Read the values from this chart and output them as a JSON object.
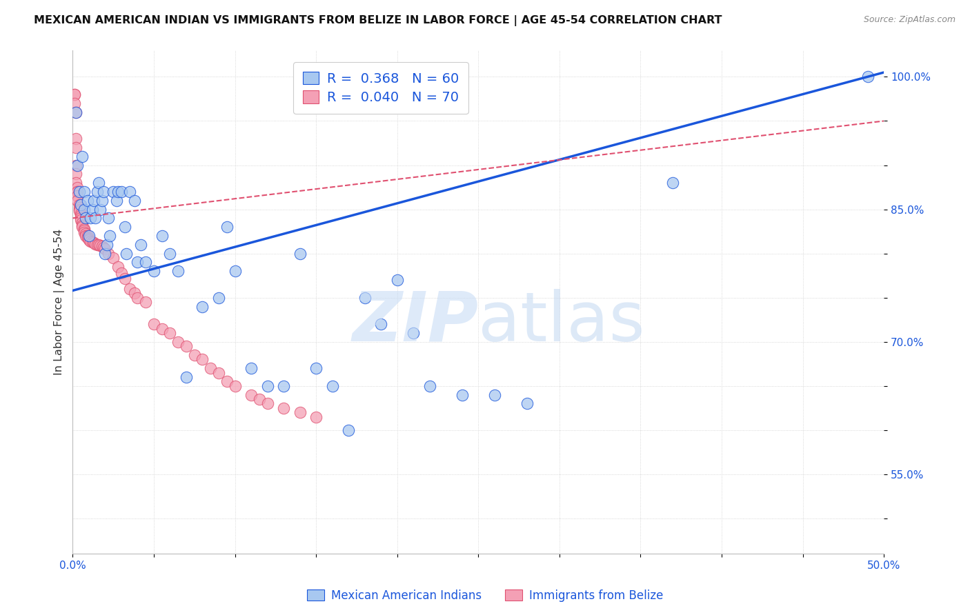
{
  "title": "MEXICAN AMERICAN INDIAN VS IMMIGRANTS FROM BELIZE IN LABOR FORCE | AGE 45-54 CORRELATION CHART",
  "source": "Source: ZipAtlas.com",
  "ylabel": "In Labor Force | Age 45-54",
  "xlim": [
    0.0,
    0.5
  ],
  "ylim": [
    0.46,
    1.03
  ],
  "blue_color": "#A8C8F0",
  "pink_color": "#F4A0B5",
  "line_blue": "#1A56DB",
  "line_pink": "#E05070",
  "blue_line_x0": 0.0,
  "blue_line_y0": 0.758,
  "blue_line_x1": 0.5,
  "blue_line_y1": 1.005,
  "pink_line_x0": 0.0,
  "pink_line_y0": 0.84,
  "pink_line_x1": 0.5,
  "pink_line_y1": 0.95,
  "blue_scatter_x": [
    0.002,
    0.003,
    0.004,
    0.005,
    0.006,
    0.007,
    0.007,
    0.008,
    0.009,
    0.01,
    0.011,
    0.012,
    0.013,
    0.014,
    0.015,
    0.016,
    0.017,
    0.018,
    0.019,
    0.02,
    0.021,
    0.022,
    0.023,
    0.025,
    0.027,
    0.028,
    0.03,
    0.032,
    0.033,
    0.035,
    0.038,
    0.04,
    0.042,
    0.045,
    0.05,
    0.055,
    0.06,
    0.065,
    0.07,
    0.08,
    0.09,
    0.095,
    0.1,
    0.11,
    0.12,
    0.13,
    0.14,
    0.15,
    0.16,
    0.17,
    0.18,
    0.19,
    0.2,
    0.21,
    0.22,
    0.24,
    0.26,
    0.28,
    0.37,
    0.49
  ],
  "blue_scatter_y": [
    0.96,
    0.9,
    0.87,
    0.855,
    0.91,
    0.85,
    0.87,
    0.84,
    0.86,
    0.82,
    0.84,
    0.85,
    0.86,
    0.84,
    0.87,
    0.88,
    0.85,
    0.86,
    0.87,
    0.8,
    0.81,
    0.84,
    0.82,
    0.87,
    0.86,
    0.87,
    0.87,
    0.83,
    0.8,
    0.87,
    0.86,
    0.79,
    0.81,
    0.79,
    0.78,
    0.82,
    0.8,
    0.78,
    0.66,
    0.74,
    0.75,
    0.83,
    0.78,
    0.67,
    0.65,
    0.65,
    0.8,
    0.67,
    0.65,
    0.6,
    0.75,
    0.72,
    0.77,
    0.71,
    0.65,
    0.64,
    0.64,
    0.63,
    0.88,
    1.0
  ],
  "pink_scatter_x": [
    0.001,
    0.001,
    0.001,
    0.002,
    0.002,
    0.002,
    0.002,
    0.002,
    0.002,
    0.003,
    0.003,
    0.003,
    0.003,
    0.003,
    0.004,
    0.004,
    0.004,
    0.004,
    0.005,
    0.005,
    0.005,
    0.005,
    0.006,
    0.006,
    0.006,
    0.007,
    0.007,
    0.007,
    0.008,
    0.008,
    0.009,
    0.009,
    0.01,
    0.01,
    0.011,
    0.012,
    0.013,
    0.014,
    0.015,
    0.016,
    0.017,
    0.018,
    0.019,
    0.02,
    0.022,
    0.025,
    0.028,
    0.03,
    0.032,
    0.035,
    0.038,
    0.04,
    0.045,
    0.05,
    0.055,
    0.06,
    0.065,
    0.07,
    0.075,
    0.08,
    0.085,
    0.09,
    0.095,
    0.1,
    0.11,
    0.115,
    0.12,
    0.13,
    0.14,
    0.15
  ],
  "pink_scatter_y": [
    0.98,
    0.98,
    0.97,
    0.96,
    0.93,
    0.92,
    0.9,
    0.89,
    0.88,
    0.875,
    0.87,
    0.87,
    0.865,
    0.86,
    0.855,
    0.852,
    0.85,
    0.848,
    0.845,
    0.843,
    0.84,
    0.838,
    0.835,
    0.832,
    0.83,
    0.828,
    0.826,
    0.824,
    0.822,
    0.82,
    0.82,
    0.818,
    0.817,
    0.815,
    0.814,
    0.813,
    0.812,
    0.811,
    0.81,
    0.81,
    0.809,
    0.808,
    0.807,
    0.805,
    0.8,
    0.795,
    0.785,
    0.778,
    0.772,
    0.76,
    0.755,
    0.75,
    0.745,
    0.72,
    0.715,
    0.71,
    0.7,
    0.695,
    0.685,
    0.68,
    0.67,
    0.665,
    0.655,
    0.65,
    0.64,
    0.635,
    0.63,
    0.625,
    0.62,
    0.615
  ]
}
